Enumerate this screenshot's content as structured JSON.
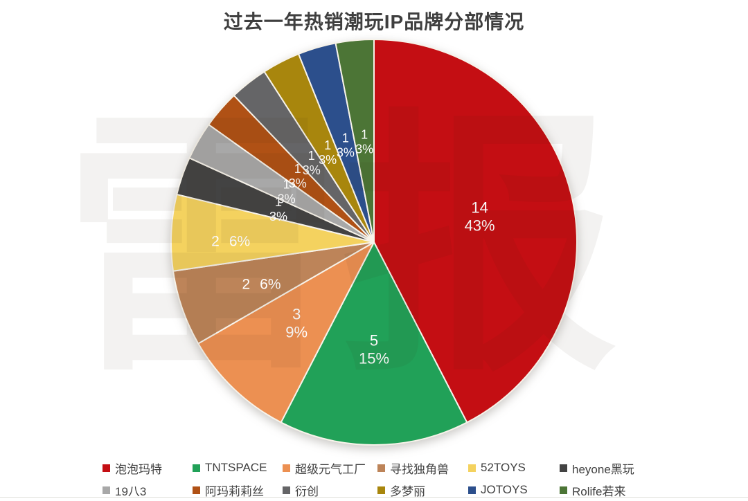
{
  "title": "过去一年热销潮玩IP品牌分部情况",
  "watermark": "雷报",
  "chart_data": {
    "type": "pie",
    "title": "过去一年热销潮玩IP品牌分部情况",
    "total_units": 33,
    "start_angle_deg": 0,
    "direction": "clockwise",
    "legend_position": "bottom",
    "data_labels": "value and percent, white text inside slices",
    "series": [
      {
        "name": "泡泡玛特",
        "value": 14,
        "pct": "43%",
        "color": "#C40E13"
      },
      {
        "name": "TNTSPACE",
        "value": 5,
        "pct": "15%",
        "color": "#21A158"
      },
      {
        "name": "超级元气工厂",
        "value": 3,
        "pct": "9%",
        "color": "#EC9052"
      },
      {
        "name": "寻找独角兽",
        "value": 2,
        "pct": "6%",
        "color": "#BD8459"
      },
      {
        "name": "52TOYS",
        "value": 2,
        "pct": "6%",
        "color": "#F4D25F"
      },
      {
        "name": "heyone黑玩",
        "value": 1,
        "pct": "3%",
        "color": "#434343"
      },
      {
        "name": "19八3",
        "value": 1,
        "pct": "3%",
        "color": "#A8A8A8"
      },
      {
        "name": "阿玛莉莉丝",
        "value": 1,
        "pct": "3%",
        "color": "#B05115"
      },
      {
        "name": "衍创",
        "value": 1,
        "pct": "3%",
        "color": "#656567"
      },
      {
        "name": "多梦丽",
        "value": 1,
        "pct": "3%",
        "color": "#A8860D"
      },
      {
        "name": "JOTOYS",
        "value": 1,
        "pct": "3%",
        "color": "#2C4F8C"
      },
      {
        "name": "Rolife若来",
        "value": 1,
        "pct": "3%",
        "color": "#4C7536"
      }
    ],
    "legend_rows": [
      [
        "泡泡玛特",
        "TNTSPACE",
        "超级元气工厂",
        "寻找独角兽",
        "52TOYS",
        "heyone黑玩"
      ],
      [
        "19八3",
        "阿玛莉莉丝",
        "衍创",
        "多梦丽",
        "JOTOYS",
        "Rolife若来"
      ]
    ]
  },
  "colors": {
    "title_text": "#3F3F3F",
    "legend_text": "#404040",
    "slice_border": "#F7F3EA",
    "label_text": "#FFFFFF",
    "background": "#FFFFFF"
  }
}
